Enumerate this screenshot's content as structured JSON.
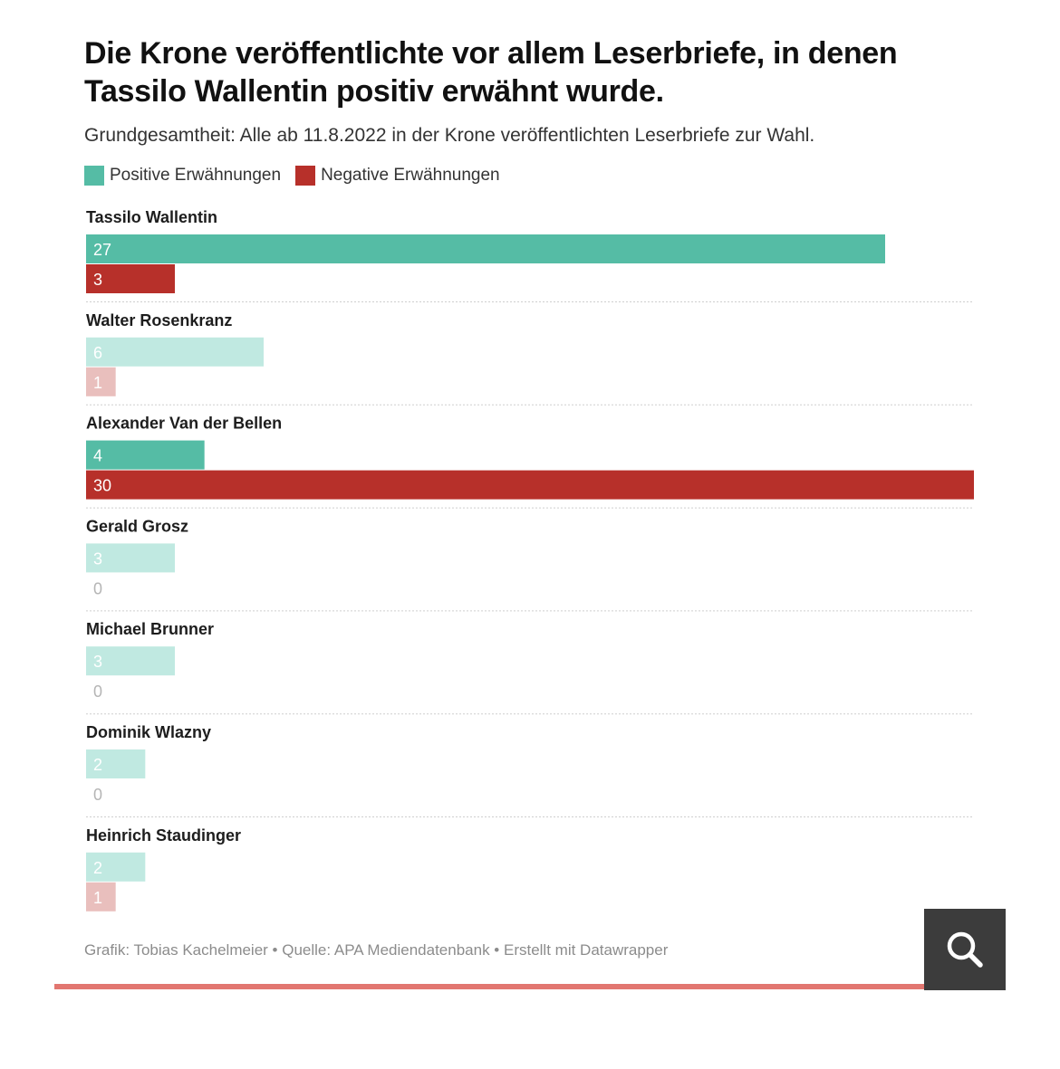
{
  "title": "Die Krone veröffentlichte vor allem Leserbriefe, in denen Tassilo Wallentin positiv erwähnt wurde.",
  "subtitle": "Grundgesamtheit: Alle ab 11.8.2022 in der Krone veröffentlichten Leserbriefe zur Wahl.",
  "footer": "Grafik: Tobias Kachelmeier • Quelle: APA Mediendatenbank • Erstellt mit Datawrapper",
  "colors": {
    "positive": "#55bca5",
    "negative": "#b7302a",
    "positive_faded": "#c0e9e1",
    "negative_faded": "#e9bfbd",
    "accent_line": "#e27670",
    "search_bg": "#3c3c3c"
  },
  "search_icon": "search-icon",
  "chart_data": {
    "type": "bar",
    "orientation": "horizontal",
    "xlim": [
      0,
      30
    ],
    "grid": false,
    "legend_position": "top-left",
    "categories": [
      "Tassilo Wallentin",
      "Walter Rosenkranz",
      "Alexander Van der Bellen",
      "Gerald Grosz",
      "Michael Brunner",
      "Dominik Wlazny",
      "Heinrich Staudinger"
    ],
    "highlighted": [
      true,
      false,
      true,
      false,
      false,
      false,
      false
    ],
    "series": [
      {
        "name": "Positive Erwähnungen",
        "color": "#55bca5",
        "values": [
          27,
          6,
          4,
          3,
          3,
          2,
          2
        ]
      },
      {
        "name": "Negative Erwähnungen",
        "color": "#b7302a",
        "values": [
          3,
          1,
          30,
          0,
          0,
          0,
          1
        ]
      }
    ]
  }
}
